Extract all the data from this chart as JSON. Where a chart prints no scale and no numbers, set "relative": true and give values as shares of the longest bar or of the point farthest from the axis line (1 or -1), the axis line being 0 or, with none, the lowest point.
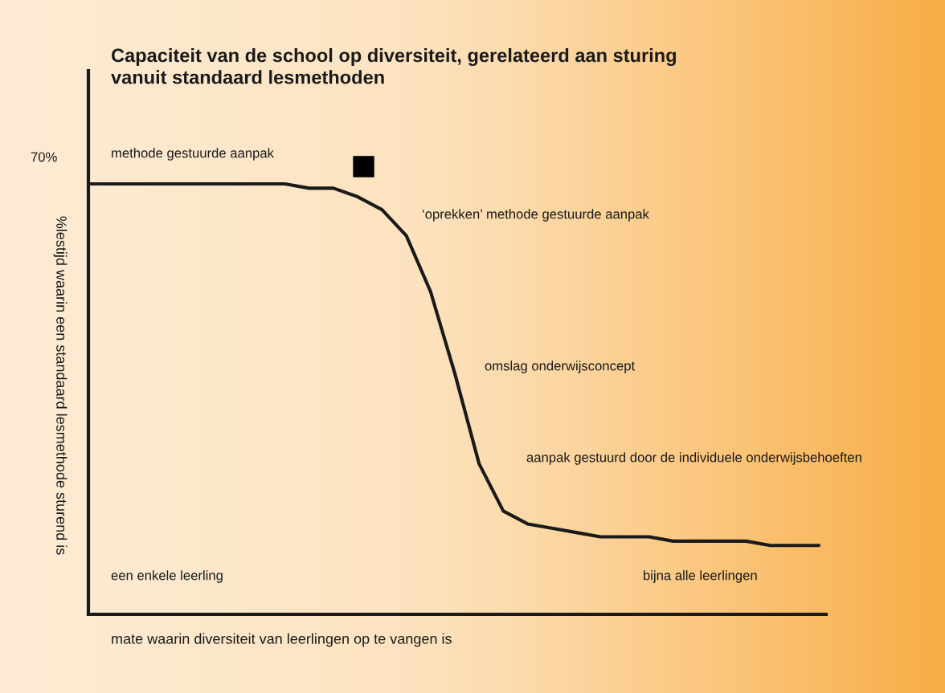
{
  "chart_data": {
    "type": "line",
    "relative": true,
    "title": "Capaciteit van de school op diversiteit, gerelateerd aan sturing\nvanuit standaard lesmethoden",
    "xlabel": "mate waarin diversiteit van leerlingen op te vangen is",
    "ylabel": "%lestijd waarin een standaard lesmethode sturend is",
    "categories": [
      null,
      null,
      null,
      null,
      null,
      null,
      null,
      null,
      null,
      null,
      null,
      null,
      null,
      null,
      null,
      null,
      null,
      null,
      null,
      null,
      null,
      null,
      null,
      null,
      null,
      null,
      null,
      null,
      null,
      null,
      null
    ],
    "series": [
      {
        "color": "#1a1a1a",
        "values": [
          1.0,
          1.0,
          1.0,
          1.0,
          1.0,
          1.0,
          1.0,
          1.0,
          1.0,
          0.99,
          0.99,
          0.97,
          0.94,
          0.88,
          0.75,
          0.56,
          0.35,
          0.24,
          0.21,
          0.2,
          0.19,
          0.18,
          0.18,
          0.18,
          0.17,
          0.17,
          0.17,
          0.17,
          0.16,
          0.16,
          0.16
        ]
      }
    ],
    "annotations": [
      "70%",
      "methode gestuurde aanpak",
      "‘oprekken’ methode gestuurde aanpak",
      "omslag onderwijsconcept",
      "aanpak gestuurd door de individuele onderwijsbehoeften",
      "een enkele leerling",
      "bijna alle leerlingen"
    ],
    "grid": false,
    "legend": false,
    "marker": "none",
    "line_style": "solid"
  }
}
